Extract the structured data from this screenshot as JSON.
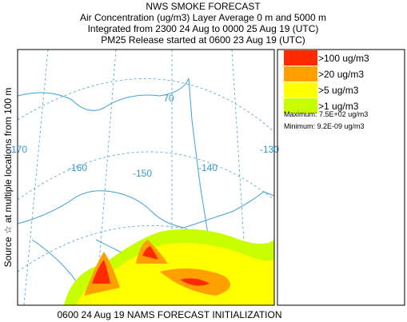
{
  "header": {
    "title": "NWS SMOKE FORECAST",
    "line1": "Air Concentration (ug/m3) Layer Average    0 m and  5000 m",
    "line2": "Integrated from 2300 24 Aug to 0000 25 Aug 19 (UTC)",
    "line3": "PM25 Release started at 0600 23 Aug 19 (UTC)"
  },
  "side_label": "Source ☆ at multiple locations    from    100 m",
  "map": {
    "graticule_labels": [
      "70",
      "-170",
      "-160",
      "-150",
      "-140",
      "-130"
    ]
  },
  "legend": {
    "items": [
      {
        "label": ">100 ug/m3",
        "color": "#ff2a00"
      },
      {
        "label": ">20 ug/m3",
        "color": "#ffa000"
      },
      {
        "label": ">5 ug/m3",
        "color": "#ffff00"
      },
      {
        "label": ">1 ug/m3",
        "color": "#c8ff00"
      }
    ],
    "maximum": "Maximum: 7.5E+02 ug/m3",
    "minimum": "Minimum: 9.2E-09 ug/m3"
  },
  "footer": "0600 24 Aug 19 NAMS FORECAST INITIALIZATION"
}
